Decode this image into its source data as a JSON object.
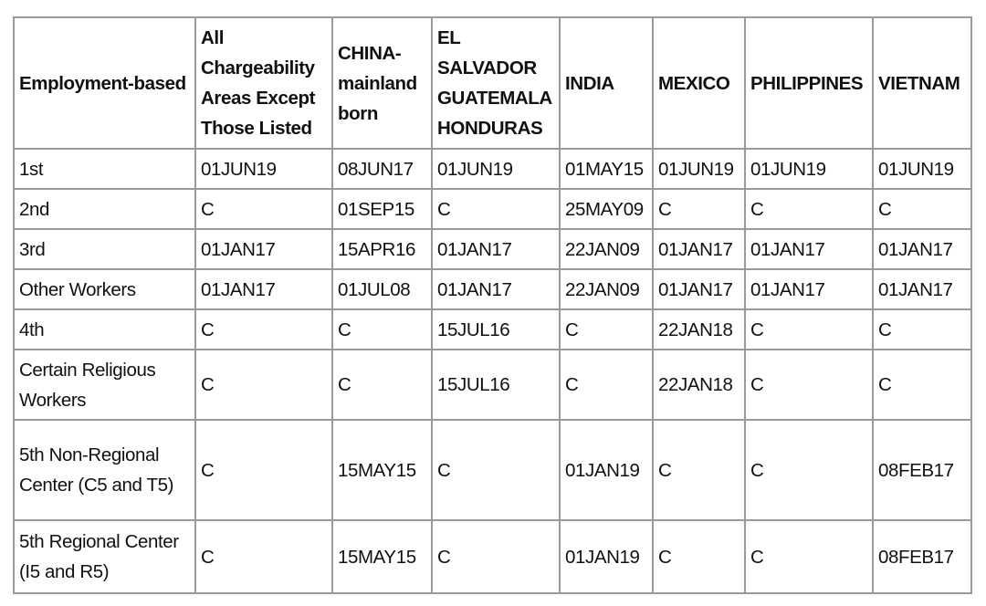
{
  "table": {
    "headers": [
      "Employment-based",
      "All Chargeability Areas Except Those Listed",
      "CHINA-mainland born",
      "EL SALVADOR GUATEMALA HONDURAS",
      "INDIA",
      "MEXICO",
      "PHILIPPINES",
      "VIETNAM"
    ],
    "rows": [
      [
        "1st",
        "01JUN19",
        "08JUN17",
        "01JUN19",
        "01MAY15",
        "01JUN19",
        "01JUN19",
        "01JUN19"
      ],
      [
        "2nd",
        "C",
        "01SEP15",
        "C",
        "25MAY09",
        "C",
        "C",
        "C"
      ],
      [
        "3rd",
        "01JAN17",
        "15APR16",
        "01JAN17",
        "22JAN09",
        "01JAN17",
        "01JAN17",
        "01JAN17"
      ],
      [
        "Other Workers",
        "01JAN17",
        "01JUL08",
        "01JAN17",
        "22JAN09",
        "01JAN17",
        "01JAN17",
        "01JAN17"
      ],
      [
        "4th",
        "C",
        "C",
        "15JUL16",
        "C",
        "22JAN18",
        "C",
        "C"
      ],
      [
        "Certain Religious Workers",
        "C",
        "C",
        "15JUL16",
        "C",
        "22JAN18",
        "C",
        "C"
      ],
      [
        "5th Non-Regional Center (C5 and T5)",
        "C",
        "15MAY15",
        "C",
        "01JAN19",
        "C",
        "C",
        "08FEB17"
      ],
      [
        "5th Regional Center (I5 and R5)",
        "C",
        "15MAY15",
        "C",
        "01JAN19",
        "C",
        "C",
        "08FEB17"
      ]
    ]
  }
}
